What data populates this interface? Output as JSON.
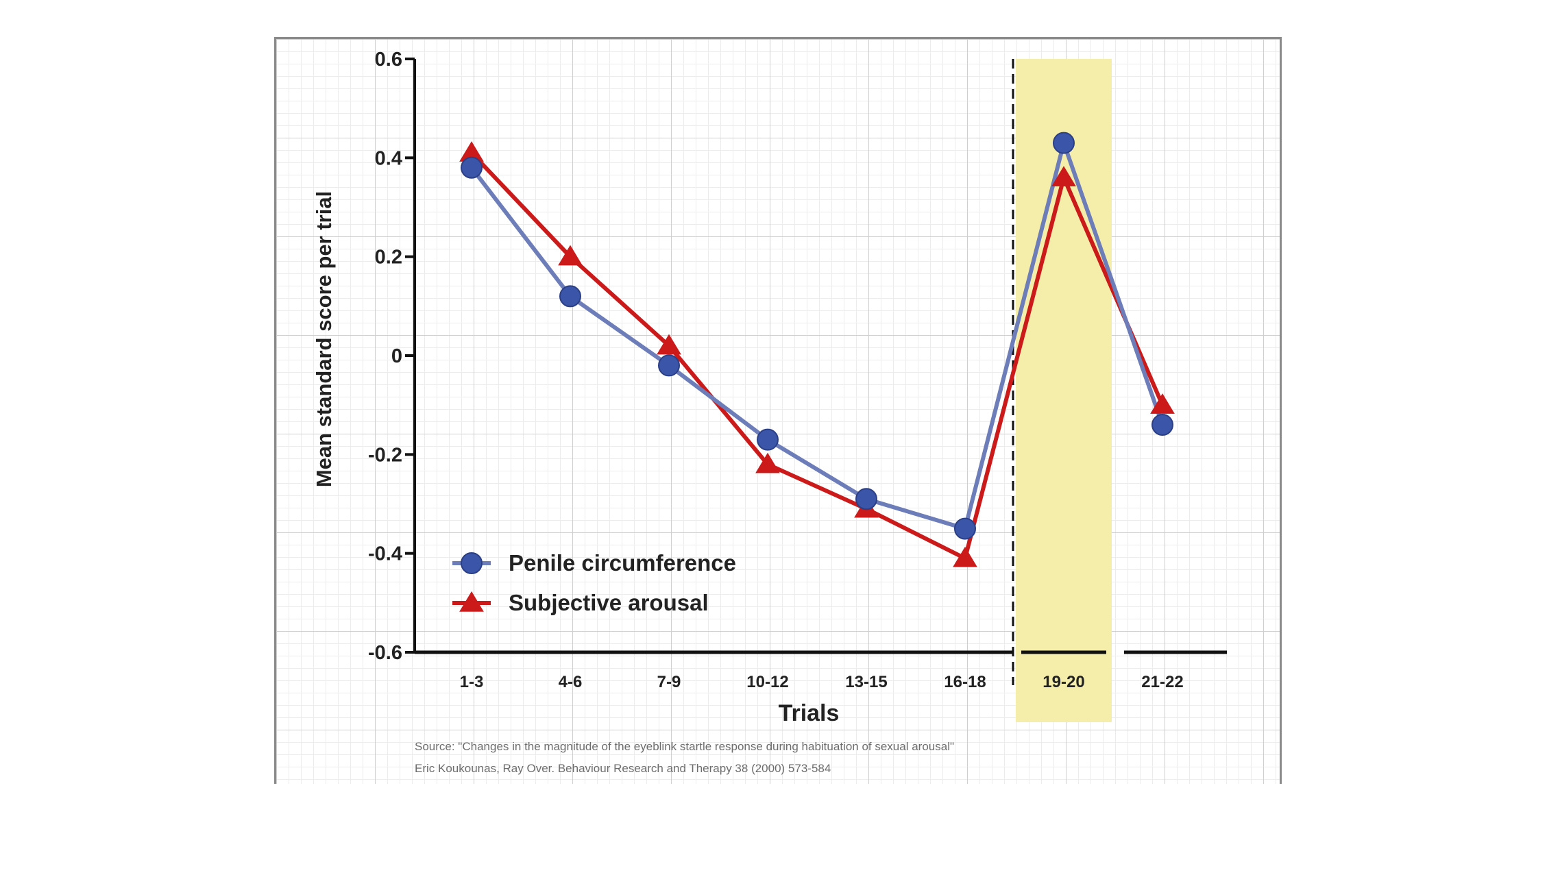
{
  "chart_data": {
    "type": "line",
    "title": "",
    "xlabel": "Trials",
    "ylabel": "Mean standard score per trial",
    "categories": [
      "1-3",
      "4-6",
      "7-9",
      "10-12",
      "13-15",
      "16-18",
      "19-20",
      "21-22"
    ],
    "ylim": [
      -0.6,
      0.6
    ],
    "yticks": [
      "0.6",
      "0.4",
      "0.2",
      "0",
      "-0.2",
      "-0.4",
      "-0.6"
    ],
    "yticks_values": [
      0.6,
      0.4,
      0.2,
      0,
      -0.2,
      -0.4,
      -0.6
    ],
    "grid": true,
    "legend_position": "bottom-left",
    "highlight_category": "19-20",
    "highlight_color": "#f5eeab",
    "series": [
      {
        "name": "Penile circumference",
        "marker": "circle",
        "color": "#3b55a8",
        "line_color": "#6c7db9",
        "values": [
          0.38,
          0.12,
          -0.02,
          -0.17,
          -0.29,
          -0.35,
          0.43,
          -0.14
        ]
      },
      {
        "name": "Subjective arousal",
        "marker": "triangle",
        "color": "#cc1a1a",
        "line_color": "#cc1a1a",
        "values": [
          0.41,
          0.2,
          0.02,
          -0.22,
          -0.31,
          -0.41,
          0.36,
          -0.1
        ]
      }
    ]
  },
  "source": {
    "line1": "Source: \"Changes in the magnitude of the eyeblink startle response during habituation of sexual arousal\"",
    "line2": "Eric Koukounas, Ray Over. Behaviour Research and Therapy 38 (2000) 573-584"
  }
}
